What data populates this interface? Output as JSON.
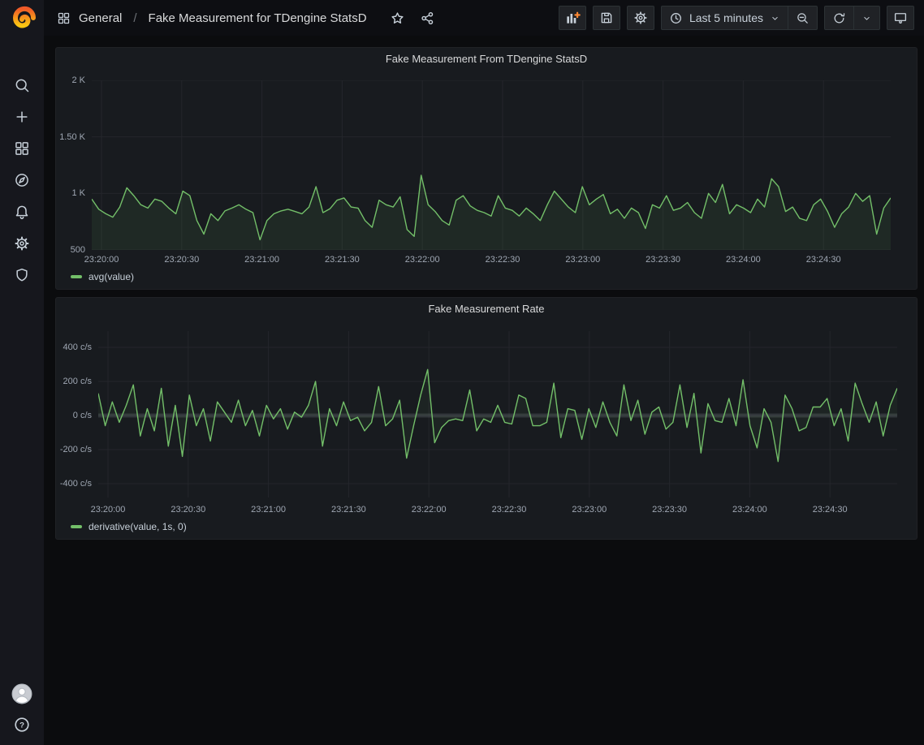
{
  "app": {
    "accent_green": "#73BF69",
    "accent_orange": "#FF8833",
    "panel_background": "#181b1f",
    "canvas_background": "#0b0c0e"
  },
  "sidebar": {
    "logo_icon": "grafana-logo",
    "item_icons": [
      "search-icon",
      "plus-icon",
      "dashboards-icon",
      "explore-compass-icon",
      "alerting-bell-icon",
      "configuration-gear-icon",
      "server-admin-shield-icon"
    ],
    "bottom_icons": [
      "user-avatar",
      "help-icon"
    ]
  },
  "topbar": {
    "breadcrumb": {
      "dashboards_icon": "apps-grid-icon",
      "section": "General",
      "separator": "/",
      "title": "Fake Measurement for TDengine StatsD"
    },
    "action_icons": [
      "star-icon",
      "share-icon"
    ],
    "toolbar": {
      "add_panel_icon": "add-panel-icon",
      "save_icon": "save-dashboard-icon",
      "settings_icon": "dashboard-settings-icon",
      "time_range": {
        "icon": "clock-icon",
        "label": "Last 5 minutes",
        "caret_icon": "chevron-down-icon"
      },
      "zoom_out_icon": "zoom-out-icon",
      "refresh": {
        "icon": "refresh-icon",
        "caret_icon": "chevron-down-icon"
      },
      "kiosk_icon": "tv-kiosk-icon"
    }
  },
  "chart_data": [
    {
      "type": "line",
      "title": "Fake Measurement From TDengine StatsD",
      "x_tick_labels": [
        "23:20:00",
        "23:20:30",
        "23:21:00",
        "23:21:30",
        "23:22:00",
        "23:22:30",
        "23:23:00",
        "23:23:30",
        "23:24:00",
        "23:24:30"
      ],
      "yticks": [
        {
          "label": "2 K",
          "value": 2000
        },
        {
          "label": "1.50 K",
          "value": 1500
        },
        {
          "label": "1 K",
          "value": 1000
        },
        {
          "label": "500",
          "value": 500
        }
      ],
      "ylim": [
        500,
        2000
      ],
      "grid": true,
      "zero_band": false,
      "fill_to": 500,
      "legend_position": "bottom-left",
      "series": [
        {
          "name": "avg(value)",
          "color": "#73BF69",
          "fill": "rgba(115,191,105,0.09)",
          "values": [
            950,
            860,
            820,
            790,
            880,
            1050,
            980,
            900,
            870,
            950,
            930,
            870,
            820,
            1020,
            980,
            760,
            640,
            820,
            760,
            845,
            870,
            900,
            860,
            830,
            590,
            760,
            820,
            845,
            860,
            840,
            820,
            880,
            1060,
            830,
            865,
            940,
            960,
            880,
            870,
            760,
            700,
            940,
            900,
            880,
            970,
            680,
            620,
            1160,
            900,
            840,
            760,
            720,
            940,
            980,
            890,
            850,
            830,
            800,
            980,
            870,
            850,
            800,
            870,
            820,
            760,
            900,
            1020,
            950,
            880,
            830,
            1060,
            900,
            950,
            990,
            820,
            860,
            780,
            870,
            830,
            690,
            900,
            870,
            980,
            850,
            870,
            920,
            830,
            780,
            1000,
            920,
            1080,
            820,
            900,
            870,
            830,
            950,
            880,
            1130,
            1060,
            840,
            880,
            780,
            760,
            900,
            950,
            840,
            700,
            820,
            880,
            1000,
            930,
            980,
            640,
            870,
            960
          ]
        }
      ]
    },
    {
      "type": "line",
      "title": "Fake Measurement Rate",
      "x_tick_labels": [
        "23:20:00",
        "23:20:30",
        "23:21:00",
        "23:21:30",
        "23:22:00",
        "23:22:30",
        "23:23:00",
        "23:23:30",
        "23:24:00",
        "23:24:30"
      ],
      "yticks": [
        {
          "label": "400 c/s",
          "value": 400
        },
        {
          "label": "200 c/s",
          "value": 200
        },
        {
          "label": "0 c/s",
          "value": 0
        },
        {
          "label": "-200 c/s",
          "value": -200
        },
        {
          "label": "-400 c/s",
          "value": -400
        }
      ],
      "ylim": [
        -481,
        495
      ],
      "grid": true,
      "zero_band": true,
      "fill_to": 0,
      "legend_position": "bottom-left",
      "series": [
        {
          "name": "derivative(value, 1s, 0)",
          "color": "#73BF69",
          "fill": "rgba(115,191,105,0.06)",
          "values": [
            130,
            -60,
            80,
            -40,
            60,
            180,
            -120,
            40,
            -90,
            160,
            -180,
            60,
            -240,
            120,
            -60,
            40,
            -150,
            80,
            20,
            -40,
            90,
            -60,
            30,
            -120,
            60,
            -20,
            40,
            -80,
            20,
            -10,
            60,
            200,
            -180,
            40,
            -60,
            80,
            -30,
            -10,
            -90,
            -40,
            170,
            -60,
            -20,
            90,
            -250,
            -60,
            120,
            270,
            -160,
            -70,
            -30,
            -20,
            -30,
            150,
            -90,
            -20,
            -40,
            60,
            -40,
            -50,
            120,
            100,
            -60,
            -60,
            -40,
            190,
            -130,
            40,
            30,
            -140,
            40,
            -70,
            80,
            -40,
            -120,
            180,
            -30,
            90,
            -110,
            20,
            50,
            -80,
            -40,
            180,
            -70,
            130,
            -220,
            70,
            -30,
            -40,
            100,
            -60,
            210,
            -60,
            -190,
            40,
            -40,
            -270,
            120,
            40,
            -90,
            -70,
            50,
            50,
            100,
            -60,
            40,
            -150,
            190,
            70,
            -40,
            80,
            -120,
            60,
            160
          ]
        }
      ]
    }
  ]
}
